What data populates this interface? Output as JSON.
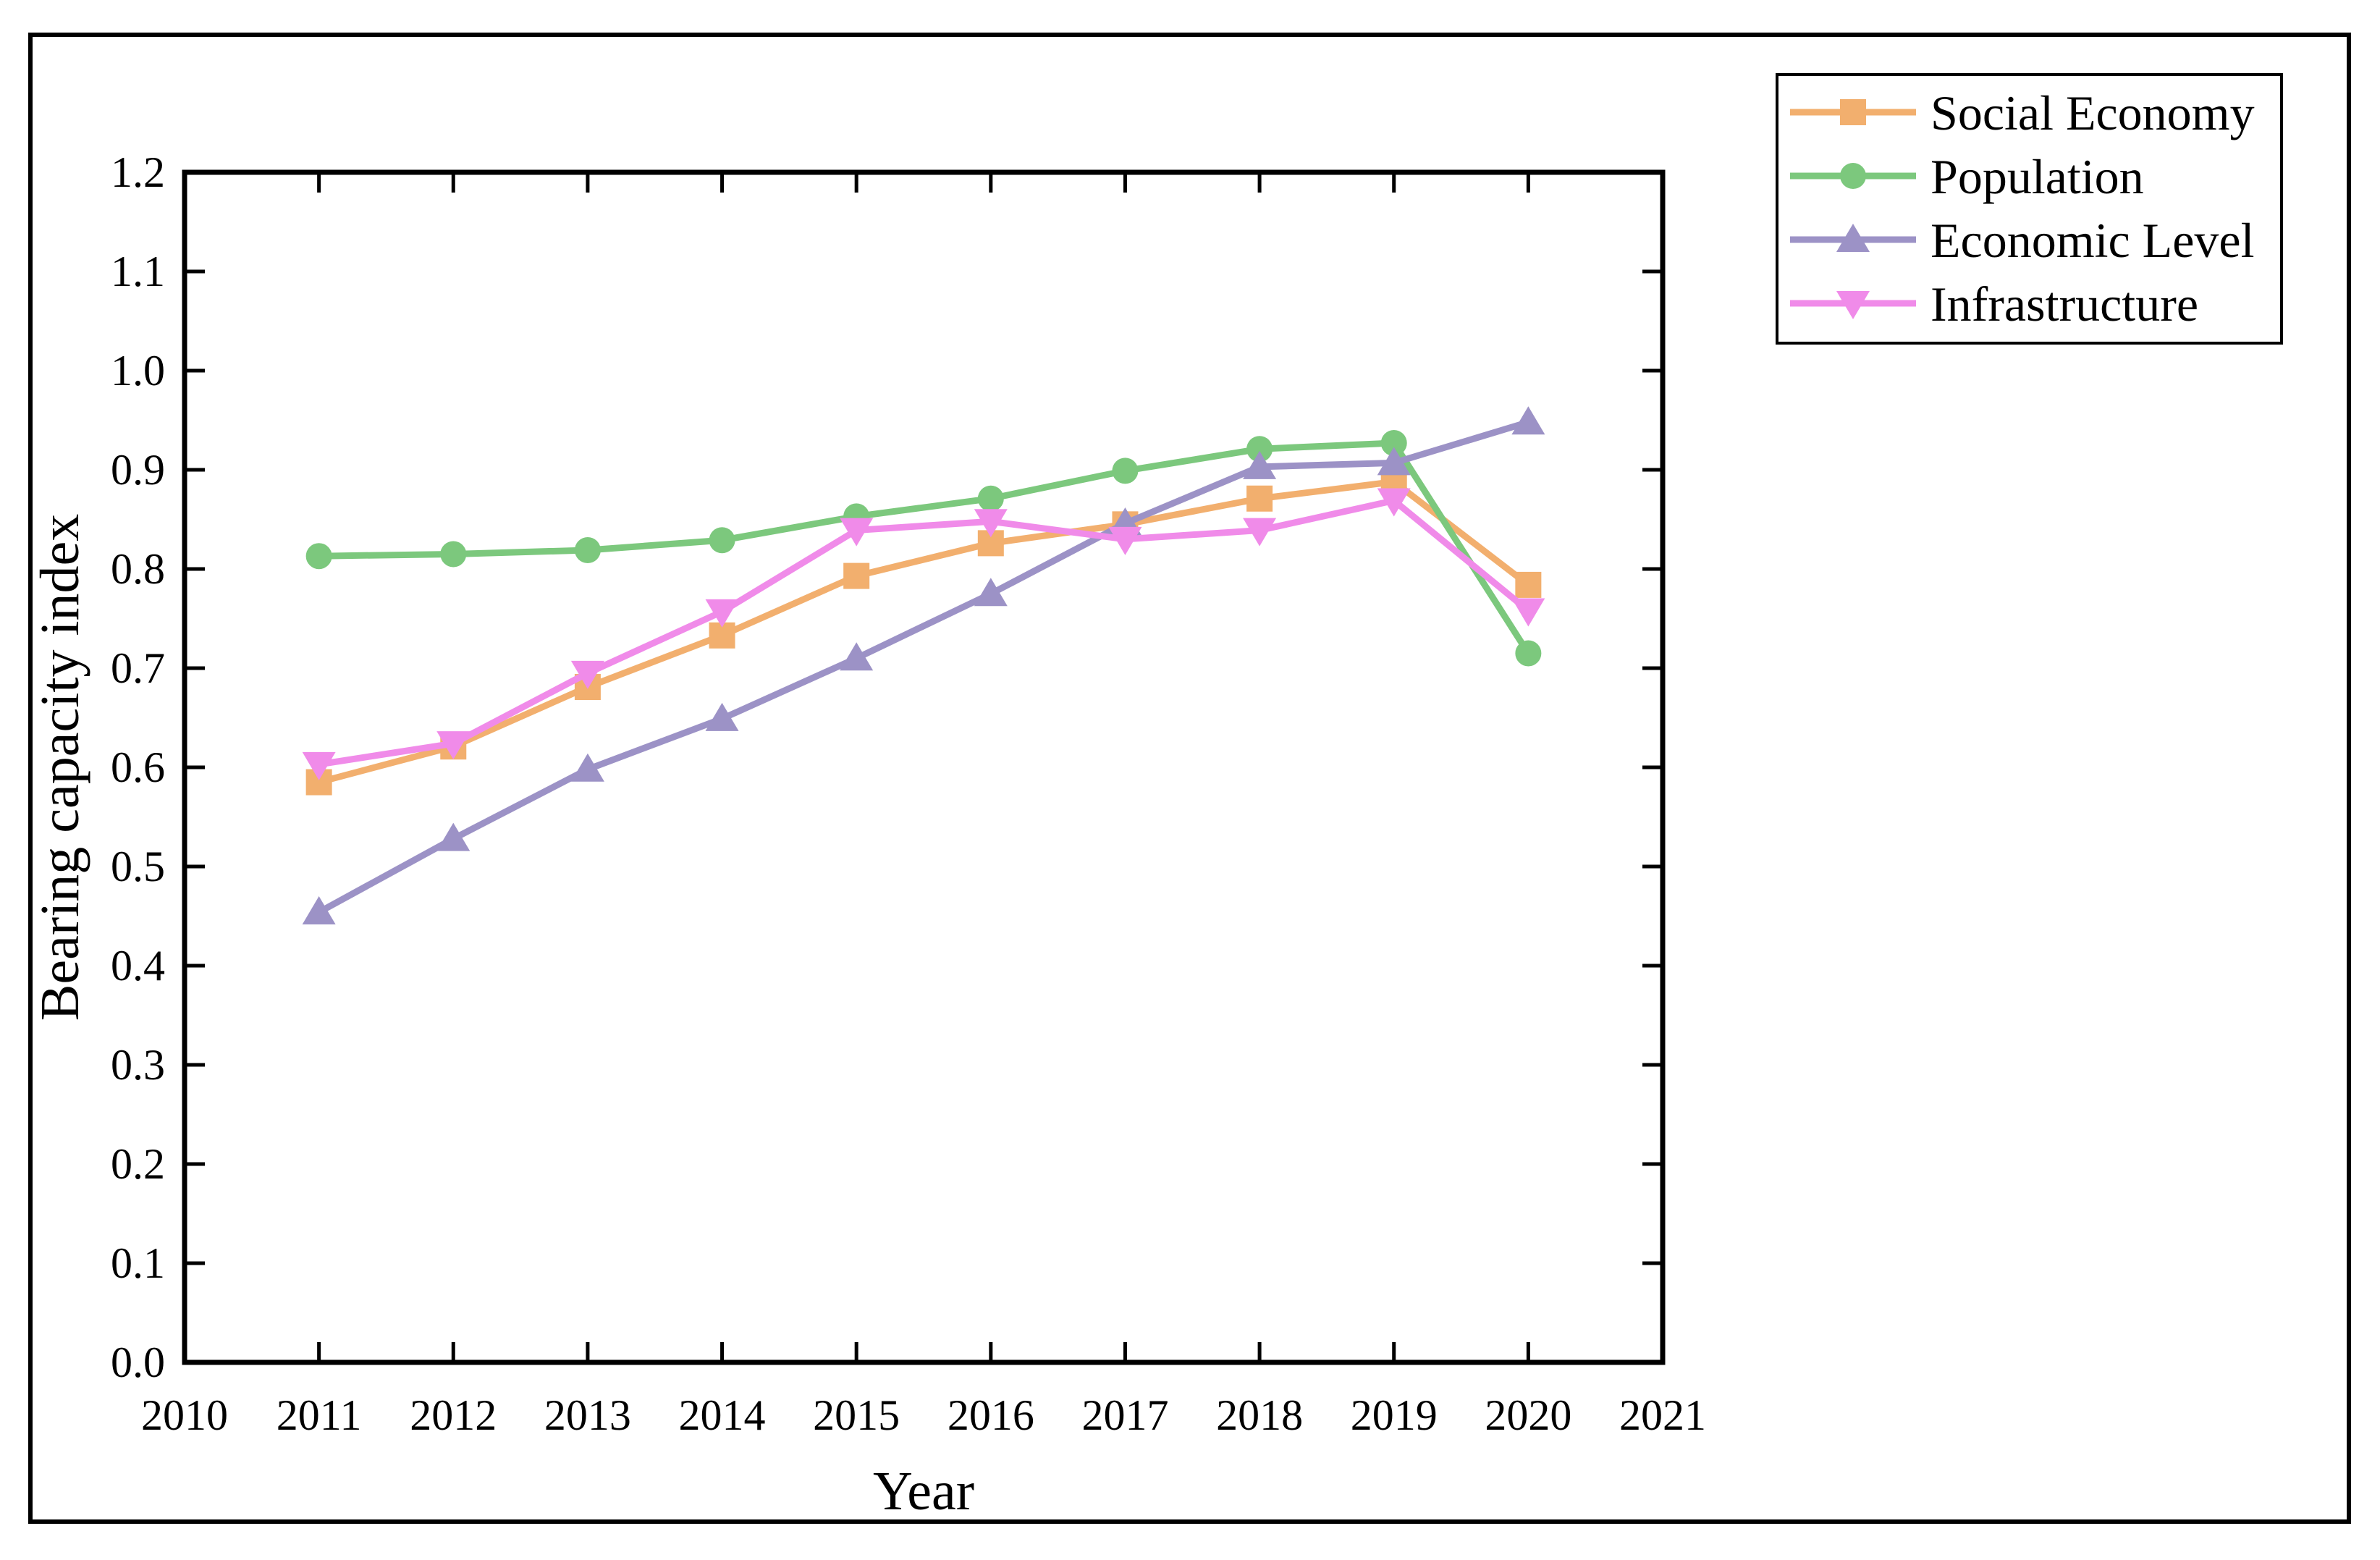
{
  "window": {
    "background": "#ffffff",
    "border_color": "#000000"
  },
  "chart_data": {
    "type": "line",
    "title": "",
    "xlabel": "Year",
    "ylabel": "Bearing capacity index",
    "x": [
      2011,
      2012,
      2013,
      2014,
      2015,
      2016,
      2017,
      2018,
      2019,
      2020
    ],
    "xlim": [
      2010,
      2021
    ],
    "ylim": [
      0.0,
      1.2
    ],
    "x_tick_labels": [
      "2010",
      "2011",
      "2012",
      "2013",
      "2014",
      "2015",
      "2016",
      "2017",
      "2018",
      "2019",
      "2020",
      "2021"
    ],
    "y_tick_labels": [
      "0.0",
      "0.1",
      "0.2",
      "0.3",
      "0.4",
      "0.5",
      "0.6",
      "0.7",
      "0.8",
      "0.9",
      "1.0",
      "1.1",
      "1.2"
    ],
    "grid": false,
    "legend_position": "top-right",
    "tick_direction": "in",
    "series": [
      {
        "name": "Social Economy",
        "color": "#F2AF6E",
        "marker": "square",
        "values": [
          0.585,
          0.621,
          0.681,
          0.733,
          0.793,
          0.826,
          0.845,
          0.871,
          0.888,
          0.784
        ]
      },
      {
        "name": "Population",
        "color": "#7CC87D",
        "marker": "circle",
        "values": [
          0.813,
          0.815,
          0.819,
          0.829,
          0.853,
          0.871,
          0.899,
          0.921,
          0.927,
          0.715
        ]
      },
      {
        "name": "Economic Level",
        "color": "#9C92C6",
        "marker": "triangle-up",
        "values": [
          0.454,
          0.528,
          0.598,
          0.649,
          0.71,
          0.775,
          0.846,
          0.903,
          0.907,
          0.948
        ]
      },
      {
        "name": "Infrastructure",
        "color": "#F08BE9",
        "marker": "triangle-down",
        "values": [
          0.603,
          0.624,
          0.695,
          0.757,
          0.839,
          0.848,
          0.83,
          0.839,
          0.869,
          0.758
        ]
      }
    ]
  }
}
